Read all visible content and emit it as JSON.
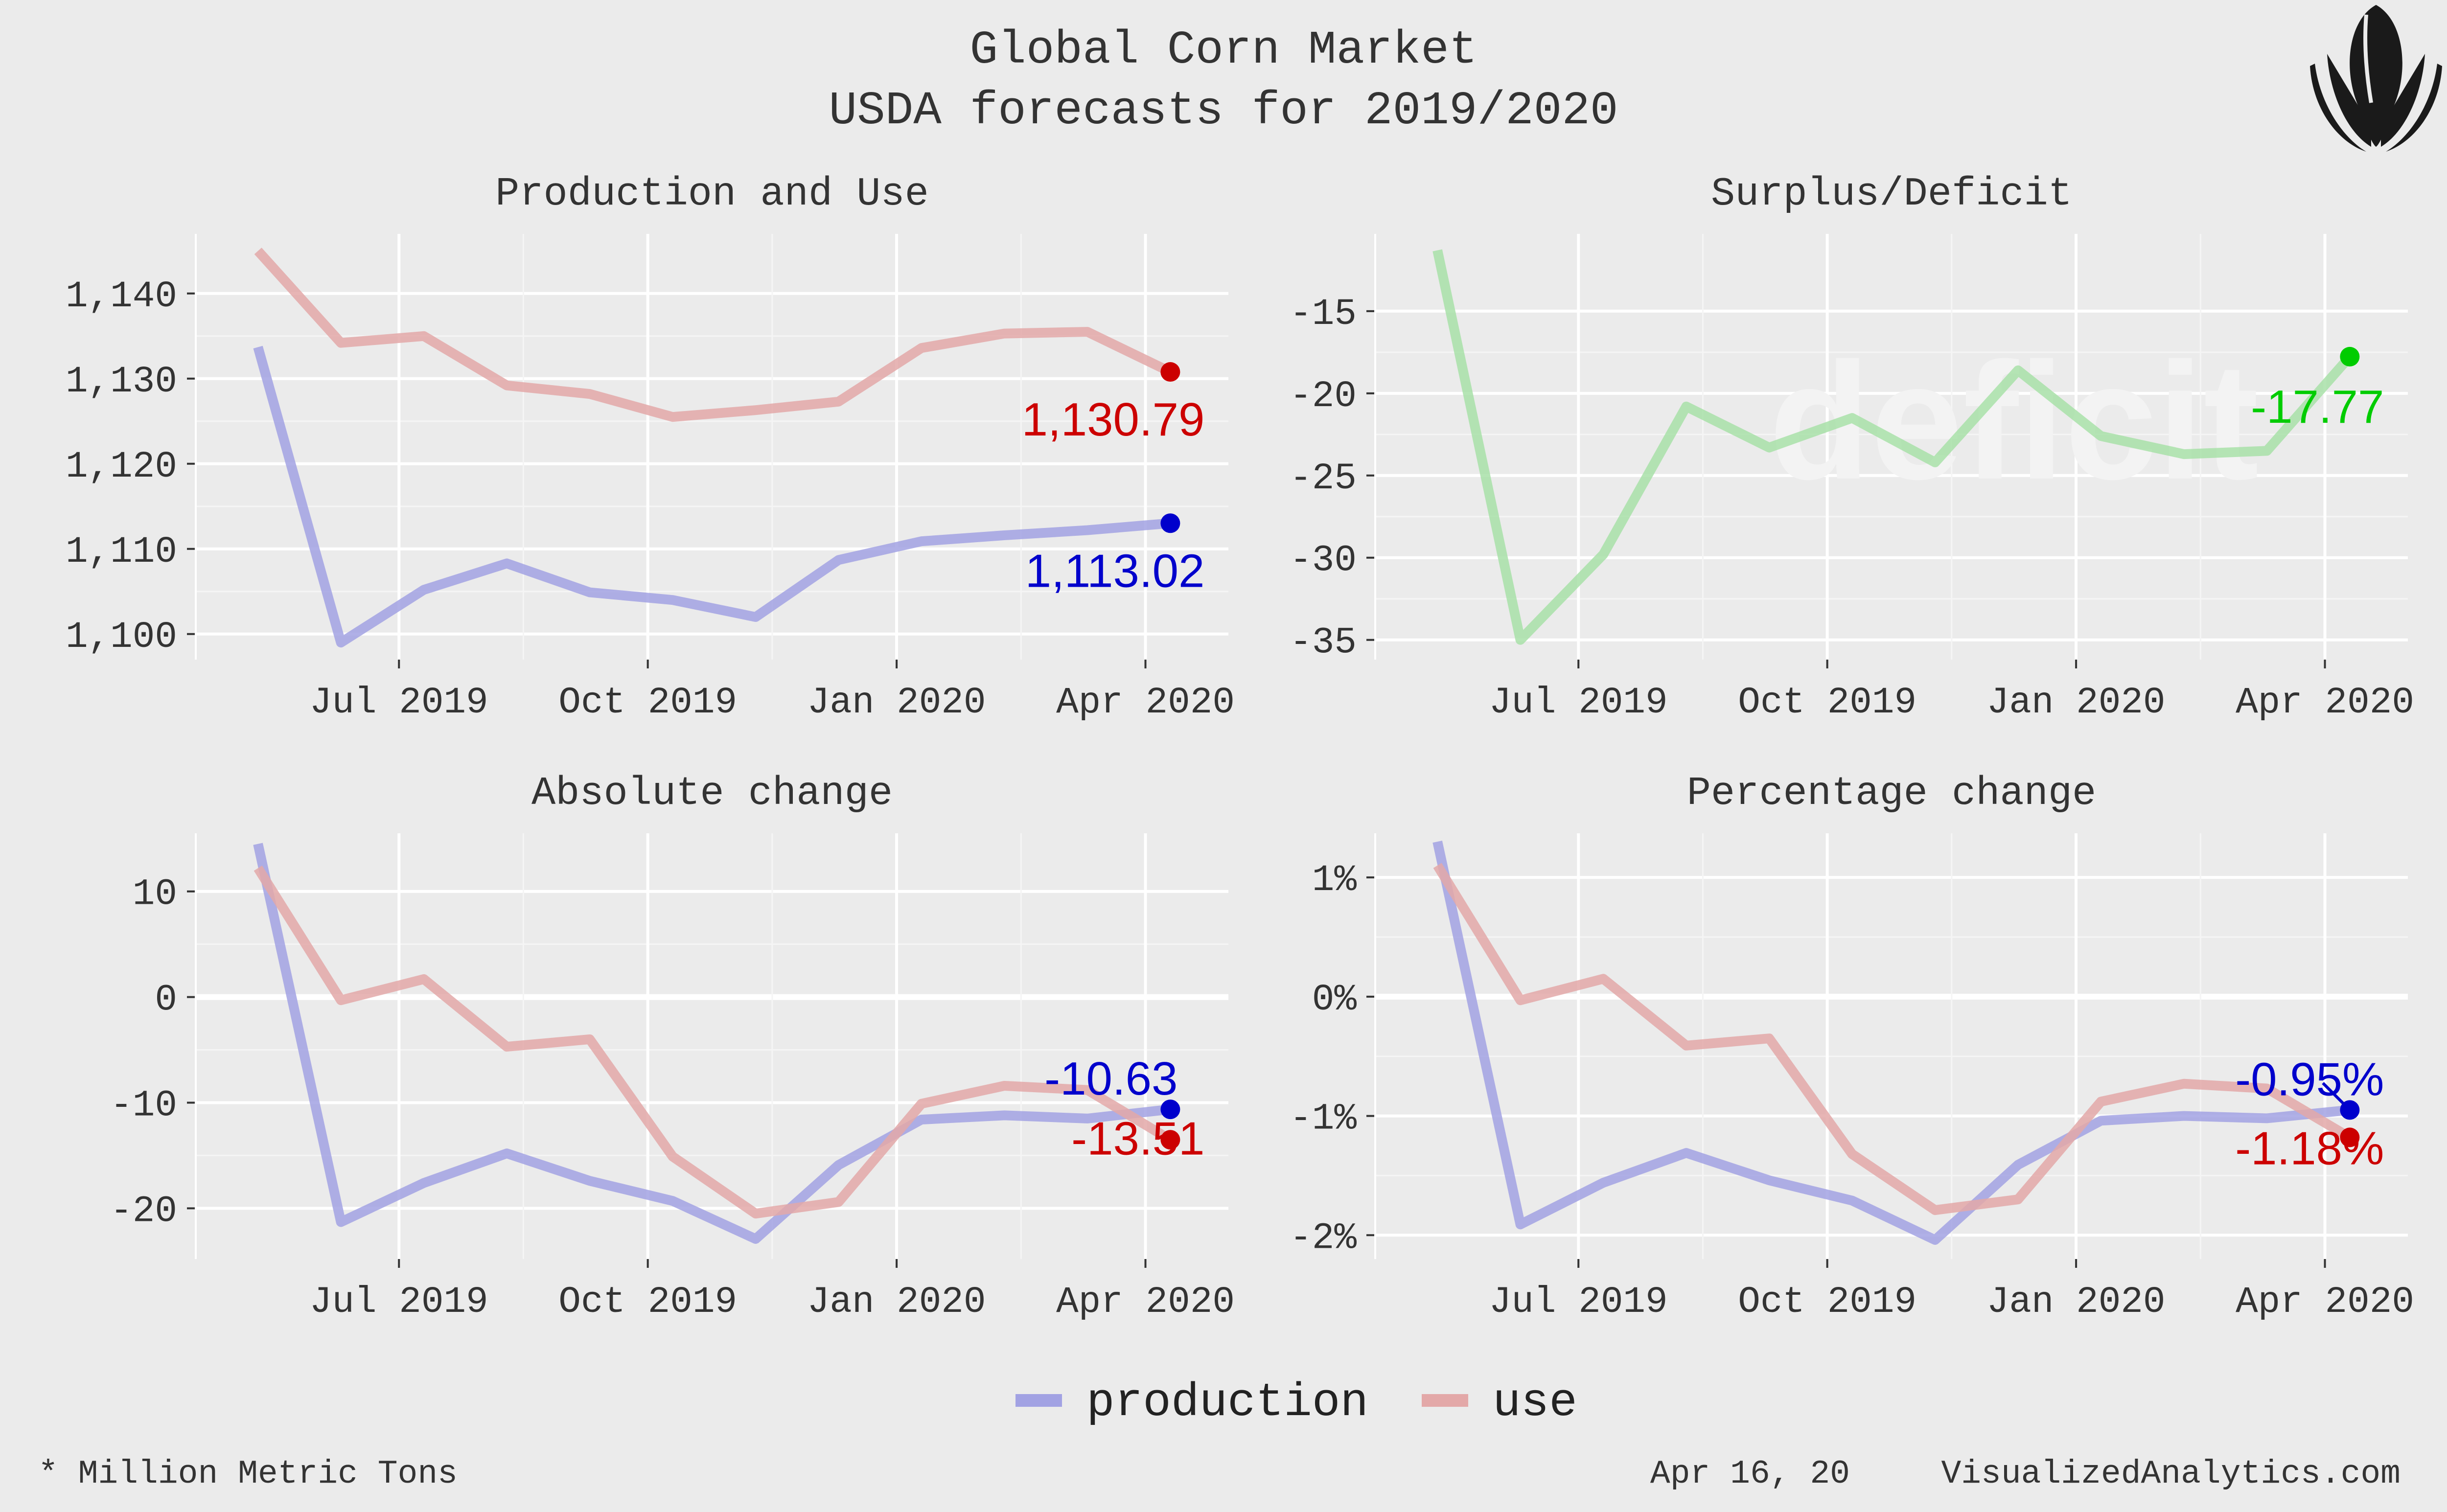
{
  "header": {
    "title": "Global Corn Market",
    "subtitle": "USDA forecasts for 2019/2020"
  },
  "logo": {
    "name": "corn-logo-icon"
  },
  "colors": {
    "background": "#ebebeb",
    "grid": "#ffffff",
    "production": "#a2a2e3",
    "use": "#e3a8a8",
    "surplus": "#a8e0a8",
    "production_point": "#0000cc",
    "use_point": "#cc0000",
    "surplus_point": "#00cc00",
    "text": "#333333"
  },
  "x_tick_labels": [
    "Jul 2019",
    "Oct 2019",
    "Jan 2020",
    "Apr 2020"
  ],
  "legend": {
    "items": [
      {
        "label": "production",
        "color": "#a2a2e3"
      },
      {
        "label": "use",
        "color": "#e3a8a8"
      }
    ]
  },
  "footer": {
    "note": "* Million Metric Tons",
    "date": "Apr 16, 20",
    "source": "VisualizedAnalytics.com"
  },
  "chart_data": [
    {
      "id": "production-use",
      "type": "line",
      "title": "Production and Use",
      "x": [
        "May 2019",
        "Jun 2019",
        "Jul 2019",
        "Aug 2019",
        "Sep 2019",
        "Oct 2019",
        "Nov 2019",
        "Dec 2019",
        "Jan 2020",
        "Feb 2020",
        "Mar 2020",
        "Apr 2020"
      ],
      "series": [
        {
          "name": "production",
          "values": [
            1133.7,
            1099.0,
            1105.2,
            1108.3,
            1104.9,
            1104.0,
            1102.0,
            1108.7,
            1110.9,
            1111.6,
            1112.2,
            1113.02
          ]
        },
        {
          "name": "use",
          "values": [
            1145.0,
            1134.2,
            1135.0,
            1129.2,
            1128.2,
            1125.5,
            1126.3,
            1127.3,
            1133.6,
            1135.3,
            1135.5,
            1130.79
          ]
        }
      ],
      "yticks": [
        1100,
        1110,
        1120,
        1130,
        1140
      ],
      "ytick_labels": [
        "1,100",
        "1,110",
        "1,120",
        "1,130",
        "1,140"
      ],
      "ylim": [
        1097,
        1147
      ],
      "annotations": [
        {
          "series": "use",
          "text": "1,130.79",
          "value": 1130.79
        },
        {
          "series": "production",
          "text": "1,113.02",
          "value": 1113.02
        }
      ]
    },
    {
      "id": "surplus-deficit",
      "type": "line",
      "title": "Surplus/Deficit",
      "watermark": "deficit",
      "x": [
        "May 2019",
        "Jun 2019",
        "Jul 2019",
        "Aug 2019",
        "Sep 2019",
        "Oct 2019",
        "Nov 2019",
        "Dec 2019",
        "Jan 2020",
        "Feb 2020",
        "Mar 2020",
        "Apr 2020"
      ],
      "series": [
        {
          "name": "surplus",
          "values": [
            -11.3,
            -35.0,
            -29.8,
            -20.8,
            -23.3,
            -21.5,
            -24.2,
            -18.6,
            -22.6,
            -23.7,
            -23.5,
            -17.77
          ]
        }
      ],
      "yticks": [
        -35,
        -30,
        -25,
        -20,
        -15
      ],
      "ytick_labels": [
        "-35",
        "-30",
        "-25",
        "-20",
        "-15"
      ],
      "ylim": [
        -36.2,
        -10.3
      ],
      "annotations": [
        {
          "series": "surplus",
          "text": "-17.77",
          "value": -17.77
        }
      ]
    },
    {
      "id": "absolute-change",
      "type": "line",
      "title": "Absolute change",
      "x": [
        "May 2019",
        "Jun 2019",
        "Jul 2019",
        "Aug 2019",
        "Sep 2019",
        "Oct 2019",
        "Nov 2019",
        "Dec 2019",
        "Jan 2020",
        "Feb 2020",
        "Mar 2020",
        "Apr 2020"
      ],
      "series": [
        {
          "name": "production",
          "values": [
            14.5,
            -21.3,
            -17.6,
            -14.8,
            -17.4,
            -19.3,
            -22.9,
            -15.9,
            -11.6,
            -11.2,
            -11.5,
            -10.63
          ]
        },
        {
          "name": "use",
          "values": [
            12.2,
            -0.3,
            1.7,
            -4.7,
            -4.0,
            -15.1,
            -20.5,
            -19.4,
            -10.1,
            -8.4,
            -8.8,
            -13.51
          ]
        }
      ],
      "yticks": [
        -20,
        -10,
        0,
        10
      ],
      "ytick_labels": [
        "-20",
        "-10",
        "0",
        "10"
      ],
      "ylim": [
        -24.8,
        15.5
      ],
      "zero_line": true,
      "annotations": [
        {
          "series": "production",
          "text": "-10.63",
          "value": -10.63
        },
        {
          "series": "use",
          "text": "-13.51",
          "value": -13.51
        }
      ]
    },
    {
      "id": "percentage-change",
      "type": "line",
      "title": "Percentage change",
      "x": [
        "May 2019",
        "Jun 2019",
        "Jul 2019",
        "Aug 2019",
        "Sep 2019",
        "Oct 2019",
        "Nov 2019",
        "Dec 2019",
        "Jan 2020",
        "Feb 2020",
        "Mar 2020",
        "Apr 2020"
      ],
      "series": [
        {
          "name": "production",
          "values": [
            1.3,
            -1.91,
            -1.56,
            -1.31,
            -1.54,
            -1.71,
            -2.04,
            -1.41,
            -1.04,
            -1.0,
            -1.02,
            -0.95
          ]
        },
        {
          "name": "use",
          "values": [
            1.1,
            -0.03,
            0.15,
            -0.41,
            -0.35,
            -1.32,
            -1.79,
            -1.7,
            -0.88,
            -0.73,
            -0.77,
            -1.18
          ]
        }
      ],
      "yticks": [
        -2,
        -1,
        0,
        1
      ],
      "ytick_labels": [
        "-2%",
        "-1%",
        "0%",
        "1%"
      ],
      "ylim": [
        -2.2,
        1.37
      ],
      "zero_line": true,
      "annotations": [
        {
          "series": "production",
          "text": "-0.95%",
          "value": -0.95
        },
        {
          "series": "use",
          "text": "-1.18%",
          "value": -1.18
        }
      ]
    }
  ]
}
